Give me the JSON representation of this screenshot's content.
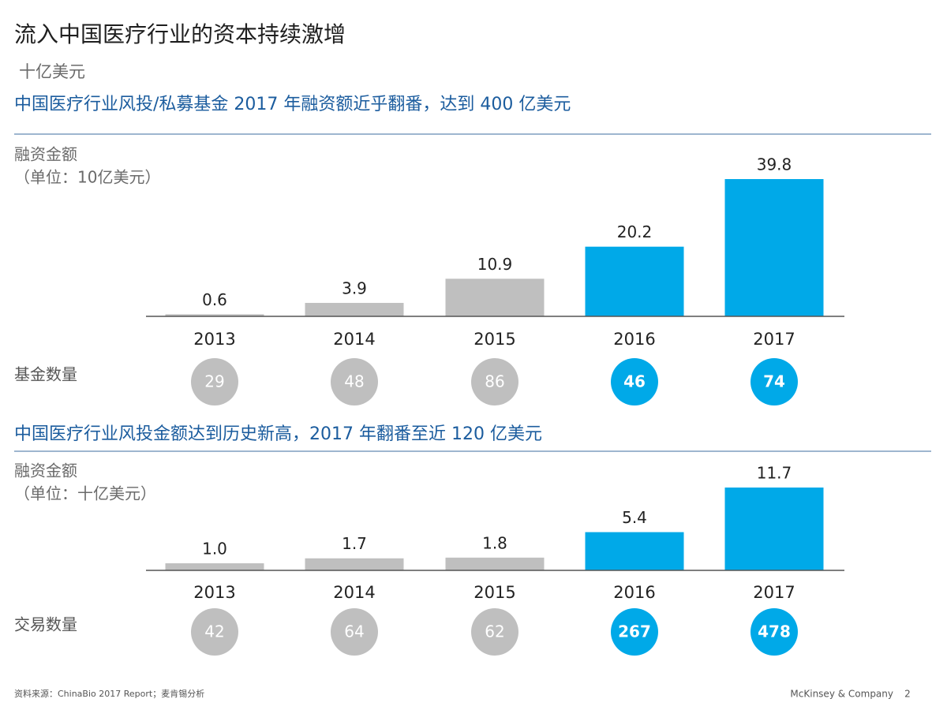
{
  "title": "流入中国医疗行业的资本持续激增",
  "unit": "十亿美元",
  "chart_data": [
    {
      "type": "bar",
      "title": "中国医疗行业风投/私募基金 2017 年融资额近乎翻番，达到 400 亿美元",
      "y_label": [
        "融资金额",
        "（单位：10亿美元）"
      ],
      "categories": [
        "2013",
        "2014",
        "2015",
        "2016",
        "2017"
      ],
      "values": [
        0.6,
        3.9,
        10.9,
        20.2,
        39.8
      ],
      "colors": [
        "#bfbfbf",
        "#bfbfbf",
        "#bfbfbf",
        "#00a9e8",
        "#00a9e8"
      ],
      "count_label": "基金数量",
      "counts": [
        29,
        48,
        86,
        46,
        74
      ]
    },
    {
      "type": "bar",
      "title": "中国医疗行业风投金额达到历史新高，2017 年翻番至近 120 亿美元",
      "y_label": [
        "融资金额",
        "（单位：十亿美元）"
      ],
      "categories": [
        "2013",
        "2014",
        "2015",
        "2016",
        "2017"
      ],
      "values": [
        1.0,
        1.7,
        1.8,
        5.4,
        11.7
      ],
      "value_labels": [
        "1.0",
        "1.7",
        "1.8",
        "5.4",
        "11.7"
      ],
      "colors": [
        "#bfbfbf",
        "#bfbfbf",
        "#bfbfbf",
        "#00a9e8",
        "#00a9e8"
      ],
      "count_label": "交易数量",
      "counts": [
        42,
        64,
        62,
        267,
        478
      ]
    }
  ],
  "footer": {
    "source": "资料来源：ChinaBio 2017 Report；麦肯锡分析",
    "company": "McKinsey & Company",
    "page": "2"
  }
}
